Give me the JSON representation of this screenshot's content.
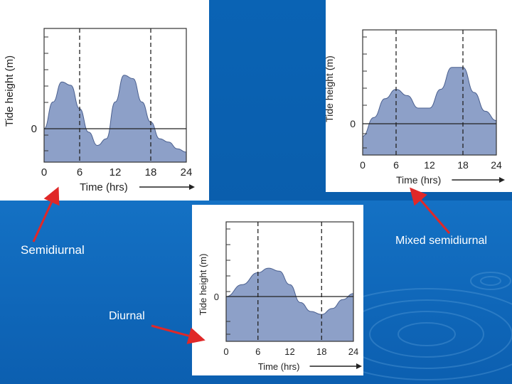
{
  "colors": {
    "background": "#0a63b4",
    "water_fill": "#8da0c8",
    "arrow": "#e02828",
    "label_text": "#ffffff"
  },
  "labels": {
    "semidiurnal": "Semidiurnal",
    "mixed": "Mixed semidiurnal",
    "diurnal": "Diurnal"
  },
  "chart_data": [
    {
      "type": "area",
      "name": "semidiurnal",
      "xlabel": "Time (hrs)",
      "ylabel": "Tide height (m)",
      "xticks": [
        "0",
        "6",
        "12",
        "18",
        "24"
      ],
      "yzero_label": "0",
      "xlim": [
        0,
        24
      ],
      "ylim": [
        -1,
        3
      ],
      "x": [
        0,
        1.5,
        3,
        4.5,
        6,
        7.5,
        9,
        10.5,
        12,
        13.5,
        15,
        16.5,
        18,
        19.5,
        21,
        22.5,
        24
      ],
      "y": [
        0.0,
        0.8,
        1.4,
        1.3,
        0.6,
        -0.1,
        -0.5,
        -0.3,
        0.8,
        1.6,
        1.5,
        0.8,
        0.2,
        -0.3,
        -0.4,
        -0.6,
        -0.7
      ],
      "dashed_x": [
        6,
        18
      ]
    },
    {
      "type": "area",
      "name": "mixed",
      "xlabel": "Time (hrs)",
      "ylabel": "Tide height (m)",
      "xticks": [
        "0",
        "6",
        "12",
        "18",
        "24"
      ],
      "yzero_label": "0",
      "xlim": [
        0,
        24
      ],
      "ylim": [
        -1,
        3
      ],
      "x": [
        0,
        2,
        4,
        6,
        8,
        10,
        12,
        14,
        16,
        18,
        20,
        22,
        24
      ],
      "y": [
        -0.4,
        0.2,
        0.8,
        1.1,
        0.9,
        0.5,
        0.5,
        1.1,
        1.8,
        1.8,
        1.0,
        0.4,
        0.1
      ],
      "dashed_x": [
        6,
        18
      ]
    },
    {
      "type": "area",
      "name": "diurnal",
      "xlabel": "Time (hrs)",
      "ylabel": "Tide height (m)",
      "xticks": [
        "0",
        "6",
        "12",
        "18",
        "24"
      ],
      "yzero_label": "0",
      "xlim": [
        0,
        24
      ],
      "ylim": [
        -1.5,
        2.5
      ],
      "x": [
        0,
        3,
        6,
        8,
        10,
        12,
        14,
        16,
        18,
        20,
        22,
        24
      ],
      "y": [
        0.0,
        0.4,
        0.8,
        0.95,
        0.85,
        0.4,
        -0.2,
        -0.5,
        -0.6,
        -0.4,
        -0.1,
        0.1
      ],
      "dashed_x": [
        6,
        18
      ]
    }
  ]
}
